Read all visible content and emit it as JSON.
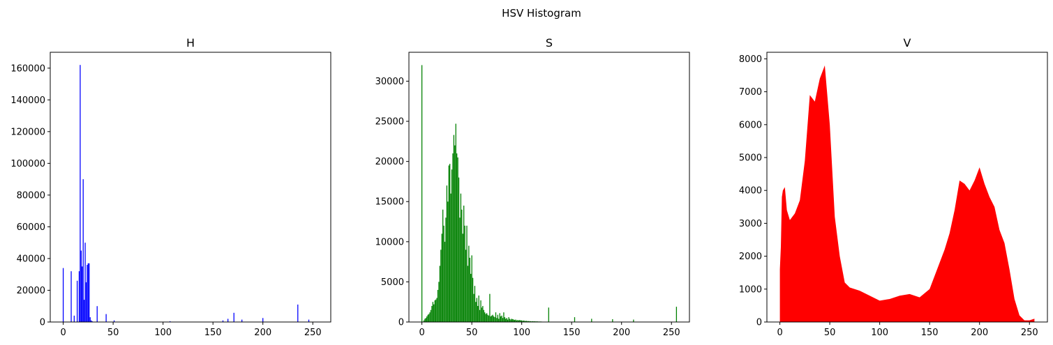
{
  "figure": {
    "title": "HSV Histogram"
  },
  "chart_data": [
    {
      "type": "bar",
      "title": "H",
      "color": "#0000ff",
      "xlim": [
        -13,
        268
      ],
      "ylim": [
        0,
        170000
      ],
      "xticks": [
        0,
        50,
        100,
        150,
        200,
        250
      ],
      "yticks": [
        0,
        20000,
        40000,
        60000,
        80000,
        100000,
        120000,
        140000,
        160000
      ],
      "x": [
        0,
        8,
        11,
        14,
        16,
        17,
        18,
        19,
        20,
        21,
        22,
        23,
        24,
        25,
        26,
        27,
        28,
        29,
        34,
        43,
        51,
        107,
        160,
        165,
        171,
        179,
        200,
        235,
        246
      ],
      "values": [
        34000,
        32000,
        4000,
        26000,
        32000,
        162000,
        45000,
        35000,
        90000,
        14000,
        50000,
        25000,
        36000,
        37000,
        37000,
        3000,
        1000,
        500,
        10000,
        5000,
        1000,
        500,
        1000,
        2000,
        5800,
        1500,
        2500,
        11000,
        1500
      ]
    },
    {
      "type": "bar",
      "title": "S",
      "color": "#008000",
      "xlim": [
        -13,
        268
      ],
      "ylim": [
        0,
        33600
      ],
      "xticks": [
        0,
        50,
        100,
        150,
        200,
        250
      ],
      "yticks": [
        0,
        5000,
        10000,
        15000,
        20000,
        25000,
        30000
      ],
      "x": [
        0,
        1,
        2,
        3,
        4,
        5,
        6,
        7,
        8,
        9,
        10,
        11,
        12,
        13,
        14,
        15,
        16,
        17,
        18,
        19,
        20,
        21,
        22,
        23,
        24,
        25,
        26,
        27,
        28,
        29,
        30,
        31,
        32,
        33,
        34,
        35,
        36,
        37,
        38,
        39,
        40,
        41,
        42,
        43,
        44,
        45,
        46,
        47,
        48,
        49,
        50,
        51,
        52,
        53,
        54,
        55,
        56,
        57,
        58,
        59,
        60,
        61,
        62,
        63,
        64,
        65,
        66,
        67,
        68,
        69,
        70,
        71,
        72,
        73,
        74,
        75,
        76,
        77,
        78,
        79,
        80,
        81,
        82,
        83,
        84,
        85,
        86,
        87,
        88,
        89,
        90,
        91,
        92,
        93,
        94,
        95,
        96,
        97,
        98,
        99,
        100,
        101,
        102,
        103,
        104,
        105,
        106,
        107,
        108,
        109,
        110,
        111,
        112,
        113,
        114,
        115,
        116,
        117,
        118,
        119,
        120,
        127,
        153,
        170,
        191,
        212,
        255
      ],
      "values": [
        32000,
        0,
        200,
        400,
        500,
        700,
        900,
        1000,
        1200,
        1500,
        2000,
        2500,
        2200,
        2700,
        2800,
        3000,
        4000,
        5000,
        7000,
        9000,
        11000,
        14000,
        12000,
        10000,
        13000,
        17000,
        15000,
        19500,
        19700,
        16000,
        19000,
        21000,
        23300,
        22000,
        24700,
        21000,
        20500,
        18000,
        13000,
        16000,
        14000,
        11000,
        14500,
        12000,
        9000,
        12000,
        7000,
        9500,
        8000,
        6000,
        8300,
        5500,
        3500,
        4500,
        2500,
        3000,
        2000,
        3300,
        1500,
        2700,
        1800,
        2000,
        1500,
        1200,
        1000,
        1100,
        900,
        800,
        3500,
        700,
        800,
        900,
        700,
        600,
        1200,
        500,
        900,
        400,
        1100,
        700,
        800,
        500,
        1200,
        600,
        400,
        500,
        300,
        600,
        400,
        300,
        400,
        350,
        300,
        250,
        300,
        200,
        250,
        200,
        250,
        200,
        200,
        150,
        180,
        150,
        120,
        150,
        100,
        120,
        100,
        100,
        80,
        100,
        80,
        90,
        70,
        80,
        70,
        60,
        60,
        60,
        50,
        1800,
        600,
        400,
        350,
        300,
        1900
      ]
    },
    {
      "type": "area",
      "title": "V",
      "color": "#ff0000",
      "xlim": [
        -13,
        268
      ],
      "ylim": [
        0,
        8200
      ],
      "xticks": [
        0,
        50,
        100,
        150,
        200,
        250
      ],
      "yticks": [
        0,
        1000,
        2000,
        3000,
        4000,
        5000,
        6000,
        7000,
        8000
      ],
      "x": [
        0,
        1,
        2,
        3,
        5,
        7,
        10,
        15,
        20,
        25,
        30,
        35,
        40,
        45,
        50,
        55,
        60,
        65,
        70,
        80,
        90,
        100,
        110,
        120,
        130,
        140,
        150,
        155,
        160,
        165,
        170,
        175,
        180,
        185,
        190,
        195,
        200,
        205,
        210,
        215,
        220,
        225,
        230,
        235,
        240,
        245,
        250,
        255
      ],
      "values": [
        1600,
        2300,
        3800,
        4000,
        4100,
        3400,
        3100,
        3300,
        3700,
        4900,
        6900,
        6700,
        7400,
        7800,
        6000,
        3200,
        2000,
        1200,
        1050,
        950,
        800,
        650,
        700,
        800,
        850,
        750,
        1000,
        1400,
        1800,
        2200,
        2700,
        3400,
        4300,
        4200,
        4000,
        4300,
        4700,
        4200,
        3800,
        3500,
        2800,
        2400,
        1600,
        700,
        200,
        50,
        50,
        100
      ]
    }
  ]
}
